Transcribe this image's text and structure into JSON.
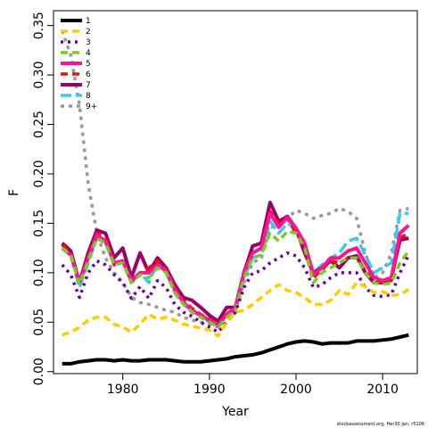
{
  "chart_data": {
    "type": "line",
    "title": "",
    "xlabel": "Year",
    "ylabel": "F",
    "xlim": [
      1972,
      2014
    ],
    "ylim": [
      -0.002,
      0.365
    ],
    "x_ticks": [
      1980,
      1990,
      2000,
      2010
    ],
    "y_ticks": [
      0.0,
      0.05,
      0.1,
      0.15,
      0.2,
      0.25,
      0.3,
      0.35
    ],
    "y_tick_labels": [
      "0.00",
      "0.05",
      "0.10",
      "0.15",
      "0.20",
      "0.25",
      "0.30",
      "0.35"
    ],
    "x_tick_labels": [
      "1980",
      "1990",
      "2000",
      "2010"
    ],
    "grid": false,
    "legend_position": "top-left",
    "x": [
      1973,
      1974,
      1975,
      1976,
      1977,
      1978,
      1979,
      1980,
      1981,
      1982,
      1983,
      1984,
      1985,
      1986,
      1987,
      1988,
      1989,
      1990,
      1991,
      1992,
      1993,
      1994,
      1995,
      1996,
      1997,
      1998,
      1999,
      2000,
      2001,
      2002,
      2003,
      2004,
      2005,
      2006,
      2007,
      2008,
      2009,
      2010,
      2011,
      2012,
      2013
    ],
    "series": [
      {
        "name": "1",
        "color": "#000000",
        "dash": "solid",
        "width": 4,
        "values": [
          0.008,
          0.008,
          0.01,
          0.011,
          0.012,
          0.012,
          0.011,
          0.012,
          0.011,
          0.011,
          0.012,
          0.012,
          0.012,
          0.011,
          0.01,
          0.01,
          0.01,
          0.011,
          0.012,
          0.013,
          0.015,
          0.016,
          0.017,
          0.019,
          0.022,
          0.025,
          0.028,
          0.03,
          0.031,
          0.03,
          0.028,
          0.029,
          0.029,
          0.029,
          0.031,
          0.031,
          0.031,
          0.032,
          0.033,
          0.035,
          0.037
        ]
      },
      {
        "name": "2",
        "color": "#ffcc00",
        "dash": "8,5",
        "width": 3.5,
        "values": [
          0.037,
          0.04,
          0.045,
          0.052,
          0.055,
          0.055,
          0.048,
          0.045,
          0.04,
          0.048,
          0.058,
          0.053,
          0.055,
          0.052,
          0.048,
          0.046,
          0.044,
          0.042,
          0.036,
          0.05,
          0.06,
          0.062,
          0.068,
          0.075,
          0.082,
          0.088,
          0.082,
          0.08,
          0.075,
          0.068,
          0.068,
          0.072,
          0.082,
          0.078,
          0.09,
          0.086,
          0.08,
          0.081,
          0.077,
          0.078,
          0.083
        ]
      },
      {
        "name": "3",
        "color": "#6600aa",
        "dash": "3,5",
        "width": 3.5,
        "values": [
          0.108,
          0.098,
          0.075,
          0.1,
          0.112,
          0.108,
          0.098,
          0.09,
          0.074,
          0.086,
          0.074,
          0.092,
          0.085,
          0.068,
          0.06,
          0.056,
          0.05,
          0.045,
          0.04,
          0.05,
          0.06,
          0.085,
          0.1,
          0.102,
          0.11,
          0.115,
          0.12,
          0.117,
          0.105,
          0.085,
          0.088,
          0.095,
          0.1,
          0.1,
          0.1,
          0.085,
          0.077,
          0.076,
          0.078,
          0.1,
          0.118
        ]
      },
      {
        "name": "4",
        "color": "#77cc22",
        "dash": "8,5",
        "width": 3.5,
        "values": [
          0.125,
          0.118,
          0.088,
          0.112,
          0.135,
          0.13,
          0.108,
          0.11,
          0.09,
          0.098,
          0.095,
          0.105,
          0.1,
          0.08,
          0.068,
          0.06,
          0.055,
          0.05,
          0.045,
          0.055,
          0.062,
          0.095,
          0.115,
          0.118,
          0.14,
          0.132,
          0.142,
          0.14,
          0.125,
          0.09,
          0.1,
          0.105,
          0.11,
          0.115,
          0.115,
          0.1,
          0.09,
          0.088,
          0.09,
          0.11,
          0.122
        ]
      },
      {
        "name": "5",
        "color": "#ff1493",
        "dash": "solid",
        "width": 4,
        "values": [
          0.125,
          0.118,
          0.09,
          0.115,
          0.138,
          0.132,
          0.11,
          0.112,
          0.092,
          0.1,
          0.1,
          0.108,
          0.102,
          0.083,
          0.07,
          0.062,
          0.057,
          0.052,
          0.047,
          0.058,
          0.064,
          0.1,
          0.12,
          0.125,
          0.16,
          0.146,
          0.156,
          0.145,
          0.13,
          0.098,
          0.105,
          0.115,
          0.115,
          0.122,
          0.125,
          0.11,
          0.095,
          0.092,
          0.095,
          0.14,
          0.148
        ]
      },
      {
        "name": "6",
        "color": "#ee1111",
        "dash": "8,5",
        "width": 3.5,
        "values": [
          0.128,
          0.12,
          0.09,
          0.115,
          0.14,
          0.135,
          0.108,
          0.112,
          0.09,
          0.098,
          0.105,
          0.112,
          0.104,
          0.085,
          0.072,
          0.064,
          0.058,
          0.053,
          0.048,
          0.058,
          0.066,
          0.102,
          0.12,
          0.125,
          0.162,
          0.15,
          0.155,
          0.14,
          0.128,
          0.095,
          0.103,
          0.112,
          0.11,
          0.115,
          0.115,
          0.102,
          0.095,
          0.09,
          0.092,
          0.135,
          0.14
        ]
      },
      {
        "name": "7",
        "color": "#990066",
        "dash": "solid",
        "width": 4,
        "values": [
          0.13,
          0.122,
          0.09,
          0.12,
          0.143,
          0.14,
          0.115,
          0.125,
          0.095,
          0.12,
          0.1,
          0.115,
          0.105,
          0.088,
          0.075,
          0.072,
          0.065,
          0.057,
          0.051,
          0.065,
          0.065,
          0.1,
          0.127,
          0.13,
          0.171,
          0.152,
          0.157,
          0.145,
          0.12,
          0.1,
          0.105,
          0.112,
          0.105,
          0.115,
          0.117,
          0.1,
          0.09,
          0.09,
          0.095,
          0.133,
          0.135
        ]
      },
      {
        "name": "8",
        "color": "#33ccee",
        "dash": "12,5",
        "width": 3.5,
        "values": [
          0.125,
          0.118,
          0.085,
          0.11,
          0.135,
          0.13,
          0.108,
          0.112,
          0.09,
          0.1,
          0.09,
          0.11,
          0.1,
          0.08,
          0.068,
          0.062,
          0.056,
          0.05,
          0.045,
          0.058,
          0.063,
          0.095,
          0.115,
          0.118,
          0.152,
          0.14,
          0.15,
          0.145,
          0.13,
          0.1,
          0.108,
          0.115,
          0.12,
          0.132,
          0.135,
          0.118,
          0.1,
          0.105,
          0.11,
          0.16,
          0.16
        ]
      },
      {
        "name": "9+",
        "color": "#999999",
        "dash": "4,5",
        "width": 3.5,
        "values": [
          0.345,
          0.32,
          0.27,
          0.19,
          0.14,
          0.115,
          0.1,
          0.09,
          0.075,
          0.07,
          0.068,
          0.065,
          0.062,
          0.06,
          0.055,
          0.052,
          0.05,
          0.048,
          0.045,
          0.05,
          0.06,
          0.09,
          0.11,
          0.115,
          0.145,
          0.15,
          0.155,
          0.163,
          0.16,
          0.155,
          0.158,
          0.16,
          0.165,
          0.162,
          0.155,
          0.12,
          0.095,
          0.1,
          0.12,
          0.163,
          0.165
        ]
      }
    ]
  },
  "footer": {
    "credit": "stockassessment.org, Her30 Jan, r5106"
  }
}
